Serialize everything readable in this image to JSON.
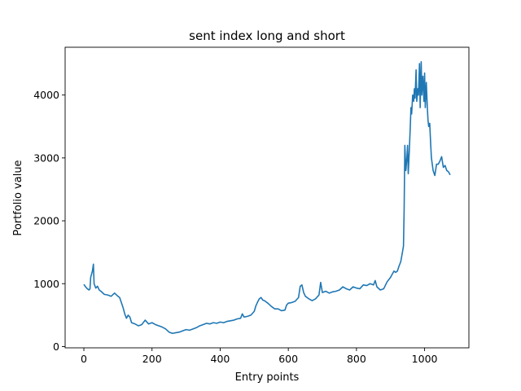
{
  "chart_data": {
    "type": "line",
    "title": "sent index long and short",
    "xlabel": "Entry points",
    "ylabel": "Portfolio value",
    "xlim": [
      -55,
      1130
    ],
    "ylim": [
      -20,
      4760
    ],
    "xticks": [
      0,
      200,
      400,
      600,
      800,
      1000
    ],
    "yticks": [
      0,
      1000,
      2000,
      3000,
      4000
    ],
    "grid": false,
    "series": [
      {
        "color": "#1f77b4",
        "points": [
          [
            0,
            990
          ],
          [
            5,
            950
          ],
          [
            10,
            920
          ],
          [
            15,
            900
          ],
          [
            18,
            920
          ],
          [
            20,
            1100
          ],
          [
            25,
            1200
          ],
          [
            28,
            1310
          ],
          [
            30,
            1000
          ],
          [
            35,
            930
          ],
          [
            40,
            960
          ],
          [
            45,
            900
          ],
          [
            50,
            880
          ],
          [
            60,
            830
          ],
          [
            70,
            820
          ],
          [
            80,
            800
          ],
          [
            90,
            850
          ],
          [
            100,
            800
          ],
          [
            105,
            780
          ],
          [
            110,
            700
          ],
          [
            115,
            620
          ],
          [
            120,
            520
          ],
          [
            125,
            450
          ],
          [
            130,
            500
          ],
          [
            135,
            470
          ],
          [
            140,
            380
          ],
          [
            150,
            360
          ],
          [
            160,
            330
          ],
          [
            170,
            350
          ],
          [
            180,
            420
          ],
          [
            190,
            360
          ],
          [
            200,
            380
          ],
          [
            210,
            350
          ],
          [
            220,
            330
          ],
          [
            230,
            310
          ],
          [
            240,
            280
          ],
          [
            250,
            230
          ],
          [
            260,
            210
          ],
          [
            270,
            220
          ],
          [
            280,
            230
          ],
          [
            290,
            250
          ],
          [
            300,
            270
          ],
          [
            310,
            260
          ],
          [
            320,
            280
          ],
          [
            330,
            300
          ],
          [
            340,
            330
          ],
          [
            350,
            350
          ],
          [
            360,
            370
          ],
          [
            370,
            360
          ],
          [
            380,
            380
          ],
          [
            390,
            370
          ],
          [
            400,
            390
          ],
          [
            410,
            380
          ],
          [
            420,
            400
          ],
          [
            430,
            410
          ],
          [
            440,
            420
          ],
          [
            450,
            440
          ],
          [
            460,
            450
          ],
          [
            465,
            520
          ],
          [
            470,
            470
          ],
          [
            480,
            480
          ],
          [
            490,
            500
          ],
          [
            500,
            560
          ],
          [
            505,
            650
          ],
          [
            510,
            710
          ],
          [
            515,
            760
          ],
          [
            520,
            780
          ],
          [
            525,
            740
          ],
          [
            530,
            730
          ],
          [
            540,
            690
          ],
          [
            550,
            640
          ],
          [
            560,
            600
          ],
          [
            570,
            600
          ],
          [
            580,
            570
          ],
          [
            590,
            580
          ],
          [
            595,
            660
          ],
          [
            600,
            690
          ],
          [
            610,
            700
          ],
          [
            620,
            720
          ],
          [
            630,
            780
          ],
          [
            635,
            960
          ],
          [
            640,
            980
          ],
          [
            645,
            860
          ],
          [
            650,
            800
          ],
          [
            660,
            760
          ],
          [
            670,
            730
          ],
          [
            680,
            760
          ],
          [
            690,
            820
          ],
          [
            695,
            1020
          ],
          [
            700,
            860
          ],
          [
            710,
            880
          ],
          [
            720,
            850
          ],
          [
            730,
            870
          ],
          [
            740,
            880
          ],
          [
            750,
            900
          ],
          [
            760,
            950
          ],
          [
            770,
            920
          ],
          [
            780,
            900
          ],
          [
            790,
            950
          ],
          [
            800,
            930
          ],
          [
            810,
            920
          ],
          [
            820,
            980
          ],
          [
            830,
            970
          ],
          [
            840,
            1000
          ],
          [
            850,
            980
          ],
          [
            855,
            1050
          ],
          [
            860,
            950
          ],
          [
            870,
            900
          ],
          [
            880,
            920
          ],
          [
            890,
            1030
          ],
          [
            900,
            1100
          ],
          [
            905,
            1150
          ],
          [
            910,
            1200
          ],
          [
            915,
            1180
          ],
          [
            920,
            1200
          ],
          [
            925,
            1280
          ],
          [
            930,
            1350
          ],
          [
            935,
            1500
          ],
          [
            938,
            1600
          ],
          [
            940,
            2200
          ],
          [
            942,
            3200
          ],
          [
            945,
            2800
          ],
          [
            948,
            3000
          ],
          [
            950,
            3200
          ],
          [
            952,
            2750
          ],
          [
            955,
            3100
          ],
          [
            958,
            3500
          ],
          [
            960,
            3800
          ],
          [
            962,
            3700
          ],
          [
            965,
            4000
          ],
          [
            968,
            3900
          ],
          [
            970,
            4100
          ],
          [
            972,
            3950
          ],
          [
            975,
            4400
          ],
          [
            977,
            3900
          ],
          [
            980,
            4100
          ],
          [
            982,
            4000
          ],
          [
            985,
            4500
          ],
          [
            987,
            3800
          ],
          [
            990,
            4530
          ],
          [
            992,
            4000
          ],
          [
            995,
            4300
          ],
          [
            998,
            3900
          ],
          [
            1000,
            4350
          ],
          [
            1002,
            3800
          ],
          [
            1005,
            4200
          ],
          [
            1008,
            3800
          ],
          [
            1010,
            3600
          ],
          [
            1012,
            3500
          ],
          [
            1015,
            3550
          ],
          [
            1018,
            3200
          ],
          [
            1020,
            3000
          ],
          [
            1025,
            2800
          ],
          [
            1030,
            2720
          ],
          [
            1035,
            2900
          ],
          [
            1040,
            2900
          ],
          [
            1045,
            2950
          ],
          [
            1050,
            3020
          ],
          [
            1055,
            2850
          ],
          [
            1060,
            2880
          ],
          [
            1065,
            2800
          ],
          [
            1070,
            2780
          ],
          [
            1075,
            2730
          ]
        ]
      }
    ]
  }
}
